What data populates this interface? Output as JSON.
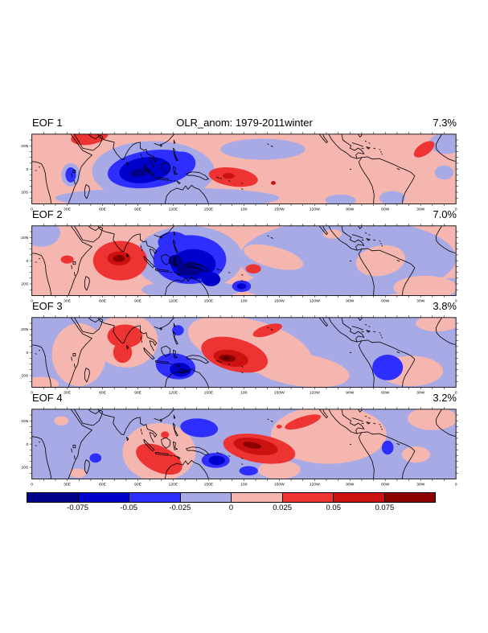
{
  "chart_data": {
    "type": "filled_contour_map_grid",
    "title": "OLR_anom: 1979-2011winter",
    "panels": [
      {
        "label": "EOF 1",
        "variance_label": "7.3%",
        "bg": "#f6b6b0",
        "blobs": [
          [
            "#a8aae6",
            103,
            32,
            52,
            26,
            0
          ],
          [
            "#a8aae6",
            115,
            55,
            95,
            9,
            0
          ],
          [
            "#a8aae6",
            196,
            13,
            36,
            9,
            0
          ],
          [
            "#a8aae6",
            262,
            57,
            13,
            5,
            0
          ],
          [
            "#a8aae6",
            306,
            55,
            11,
            6,
            0
          ],
          [
            "#a8aae6",
            352,
            8,
            15,
            9,
            0
          ],
          [
            "#a8aae6",
            350,
            33,
            8,
            6,
            0
          ],
          [
            "#a8aae6",
            33,
            35,
            8,
            10,
            0
          ],
          [
            "#2e2eff",
            101,
            30,
            37,
            16,
            -8
          ],
          [
            "#2e2eff",
            127,
            25,
            12,
            10,
            0
          ],
          [
            "#2e2eff",
            33,
            35,
            4.5,
            6.5,
            0
          ],
          [
            "#0000cd",
            96,
            31,
            22,
            11,
            -8
          ],
          [
            "#00008b",
            92,
            33,
            9,
            3.5,
            -10
          ],
          [
            "#ee3333",
            49,
            2,
            16,
            7,
            -10
          ],
          [
            "#ee3333",
            171,
            37,
            21,
            8,
            8
          ],
          [
            "#cc1111",
            167,
            36,
            5,
            2.5,
            0
          ],
          [
            "#cc1111",
            205,
            42,
            2,
            1.7,
            0
          ],
          [
            "#ee3333",
            333,
            13,
            10,
            5,
            -35
          ]
        ]
      },
      {
        "label": "EOF 2",
        "variance_label": "7.0%",
        "bg": "#f6b6b0",
        "blobs": [
          [
            "#a8aae6",
            8,
            6,
            16,
            12,
            0
          ],
          [
            "#a8aae6",
            133,
            28,
            46,
            28,
            0
          ],
          [
            "#a8aae6",
            135,
            55,
            42,
            8,
            0
          ],
          [
            "#a8aae6",
            268,
            28,
            92,
            34,
            0
          ],
          [
            "#a8aae6",
            355,
            55,
            18,
            10,
            0
          ],
          [
            "#a8aae6",
            210,
            52,
            30,
            10,
            0
          ],
          [
            "#f6b6b0",
            205,
            27,
            26,
            9,
            15
          ],
          [
            "#f6b6b0",
            296,
            30,
            21,
            13,
            -10
          ],
          [
            "#f6b6b0",
            334,
            53,
            27,
            10,
            0
          ],
          [
            "#f6b6b0",
            357,
            3,
            9,
            6,
            0
          ],
          [
            "#f6b6b0",
            255,
            7,
            8,
            4,
            0
          ],
          [
            "#ee3333",
            30,
            29,
            5.5,
            3.5,
            0
          ],
          [
            "#ee3333",
            75,
            30,
            23,
            17,
            0
          ],
          [
            "#cc1111",
            74,
            28,
            10,
            6,
            0
          ],
          [
            "#8b0000",
            74,
            28,
            5,
            3,
            0
          ],
          [
            "#ee3333",
            188,
            37,
            6.5,
            4,
            0
          ],
          [
            "#2e2eff",
            134,
            29,
            31,
            21,
            0
          ],
          [
            "#2e2eff",
            120,
            14,
            13,
            9,
            0
          ],
          [
            "#0000cd",
            137,
            33,
            19,
            13,
            0
          ],
          [
            "#00008b",
            134,
            37,
            11,
            6,
            0
          ],
          [
            "#00008b",
            122,
            30,
            6,
            5,
            0
          ],
          [
            "#0000cd",
            152,
            46,
            8,
            6,
            0
          ],
          [
            "#2e2eff",
            178,
            52,
            8,
            5,
            0
          ],
          [
            "#0000cd",
            178,
            52,
            4,
            2.5,
            0
          ]
        ]
      },
      {
        "label": "EOF 3",
        "variance_label": "3.8%",
        "bg": "#a8aae6",
        "blobs": [
          [
            "#f6b6b0",
            40,
            32,
            23,
            27,
            0
          ],
          [
            "#f6b6b0",
            80,
            20,
            27,
            23,
            0
          ],
          [
            "#f6b6b0",
            8,
            57,
            15,
            6,
            0
          ],
          [
            "#f6b6b0",
            185,
            24,
            54,
            22,
            15
          ],
          [
            "#f6b6b0",
            228,
            45,
            42,
            14,
            8
          ],
          [
            "#f6b6b0",
            322,
            46,
            27,
            13,
            0
          ],
          [
            "#f6b6b0",
            344,
            5,
            18,
            7,
            0
          ],
          [
            "#ee3333",
            79,
            16,
            15,
            10,
            0
          ],
          [
            "#ee3333",
            77,
            30,
            8,
            9,
            0
          ],
          [
            "#ee3333",
            172,
            32,
            29,
            14,
            15
          ],
          [
            "#cc1111",
            169,
            35,
            15,
            7,
            10
          ],
          [
            "#8b0000",
            166,
            35,
            7,
            3,
            5
          ],
          [
            "#5f0000",
            165,
            35,
            3,
            1.5,
            0
          ],
          [
            "#ee3333",
            200,
            11,
            13,
            4.5,
            -18
          ],
          [
            "#2e2eff",
            122,
            42,
            17,
            11,
            10
          ],
          [
            "#0000cd",
            126,
            45,
            9,
            6,
            5
          ],
          [
            "#00008b",
            128,
            46,
            4,
            2.5,
            0
          ],
          [
            "#2e2eff",
            124,
            11,
            5,
            4.5,
            0
          ],
          [
            "#2e2eff",
            302,
            43,
            13,
            11,
            0
          ]
        ]
      },
      {
        "label": "EOF 4",
        "variance_label": "3.2%",
        "bg": "#a8aae6",
        "blobs": [
          [
            "#f6b6b0",
            108,
            37,
            31,
            25,
            0
          ],
          [
            "#f6b6b0",
            252,
            22,
            49,
            25,
            0
          ],
          [
            "#f6b6b0",
            210,
            52,
            18,
            8,
            0
          ],
          [
            "#f6b6b0",
            340,
            8,
            21,
            10,
            0
          ],
          [
            "#f6b6b0",
            326,
            39,
            12,
            7,
            0
          ],
          [
            "#f6b6b0",
            25,
            10,
            6,
            4,
            0
          ],
          [
            "#f6b6b0",
            39,
            55,
            7,
            4,
            0
          ],
          [
            "#ee3333",
            108,
            43,
            21,
            11,
            25
          ],
          [
            "#ee3333",
            113,
            22,
            3.5,
            3,
            0
          ],
          [
            "#ee3333",
            193,
            34,
            31,
            12,
            10
          ],
          [
            "#cc1111",
            190,
            32,
            19,
            7,
            10
          ],
          [
            "#8b0000",
            187,
            31,
            8,
            2.6,
            10
          ],
          [
            "#ee3333",
            230,
            11,
            16,
            4.5,
            -18
          ],
          [
            "#ee3333",
            210,
            15,
            2.3,
            1.6,
            0
          ],
          [
            "#2e2eff",
            142,
            16,
            16,
            8,
            5
          ],
          [
            "#2e2eff",
            156,
            44,
            12,
            6.5,
            0
          ],
          [
            "#0000cd",
            157,
            44,
            7,
            4,
            0
          ],
          [
            "#2e2eff",
            184,
            53,
            8,
            4,
            0
          ],
          [
            "#2e2eff",
            54,
            42,
            5,
            4,
            0
          ],
          [
            "#2e2eff",
            302,
            33,
            5,
            6,
            0
          ]
        ]
      }
    ],
    "x_axis": {
      "range": [
        0,
        360
      ],
      "minor_step": 10,
      "ticks": [
        [
          0,
          "0"
        ],
        [
          30,
          "30E"
        ],
        [
          60,
          "60E"
        ],
        [
          90,
          "90E"
        ],
        [
          120,
          "120E"
        ],
        [
          150,
          "150E"
        ],
        [
          180,
          "180"
        ],
        [
          210,
          "150W"
        ],
        [
          240,
          "120W"
        ],
        [
          270,
          "90W"
        ],
        [
          300,
          "60W"
        ],
        [
          330,
          "30W"
        ],
        [
          360,
          "0"
        ]
      ]
    },
    "y_axis": {
      "range_deg": "30N to 30S",
      "minor_step": 5,
      "ticks": [
        [
          10,
          "20N"
        ],
        [
          30,
          "0"
        ],
        [
          50,
          "20S"
        ]
      ]
    },
    "colorbar": {
      "colors": [
        "#00008b",
        "#0000cd",
        "#2e2eff",
        "#a8aae6",
        "#f6b6b0",
        "#ee3333",
        "#cc1111",
        "#8b0000"
      ],
      "labels": [
        "-0.075",
        "-0.05",
        "-0.025",
        "0",
        "0.025",
        "0.05",
        "0.075"
      ]
    }
  }
}
